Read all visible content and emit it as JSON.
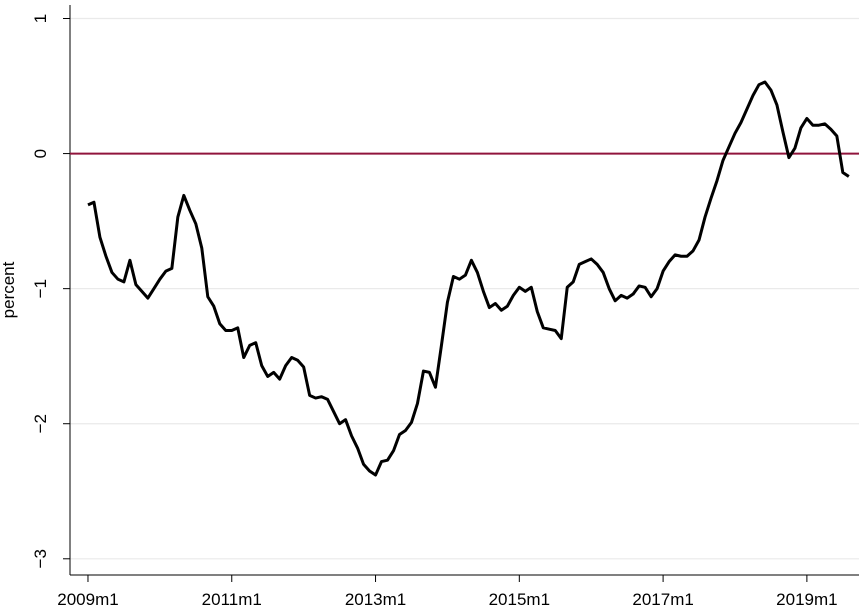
{
  "chart_data": {
    "type": "line",
    "y_label": "percent",
    "x": [
      588,
      589,
      590,
      591,
      592,
      593,
      594,
      595,
      596,
      597,
      598,
      599,
      600,
      601,
      602,
      603,
      604,
      605,
      606,
      607,
      608,
      609,
      610,
      611,
      612,
      613,
      614,
      615,
      616,
      617,
      618,
      619,
      620,
      621,
      622,
      623,
      624,
      625,
      626,
      627,
      628,
      629,
      630,
      631,
      632,
      633,
      634,
      635,
      636,
      637,
      638,
      639,
      640,
      641,
      642,
      643,
      644,
      645,
      646,
      647,
      648,
      649,
      650,
      651,
      652,
      653,
      654,
      655,
      656,
      657,
      658,
      659,
      660,
      661,
      662,
      663,
      664,
      665,
      666,
      667,
      668,
      669,
      670,
      671,
      672,
      673,
      674,
      675,
      676,
      677,
      678,
      679,
      680,
      681,
      682,
      683,
      684,
      685,
      686,
      687,
      688,
      689,
      690,
      691,
      692,
      693,
      694,
      695,
      696,
      697,
      698,
      699,
      700,
      701,
      702,
      703,
      704,
      705,
      706,
      707,
      708,
      709,
      710,
      711,
      712,
      713,
      714,
      715
    ],
    "values": [
      -0.38,
      -0.36,
      -0.62,
      -0.76,
      -0.88,
      -0.93,
      -0.95,
      -0.79,
      -0.97,
      -1.02,
      -1.07,
      -1.0,
      -0.93,
      -0.87,
      -0.85,
      -0.47,
      -0.31,
      -0.42,
      -0.52,
      -0.7,
      -1.06,
      -1.13,
      -1.26,
      -1.31,
      -1.31,
      -1.29,
      -1.51,
      -1.42,
      -1.4,
      -1.57,
      -1.65,
      -1.62,
      -1.67,
      -1.57,
      -1.51,
      -1.53,
      -1.58,
      -1.79,
      -1.81,
      -1.8,
      -1.82,
      -1.91,
      -2.0,
      -1.97,
      -2.09,
      -2.18,
      -2.3,
      -2.35,
      -2.38,
      -2.28,
      -2.27,
      -2.2,
      -2.08,
      -2.05,
      -1.99,
      -1.85,
      -1.61,
      -1.62,
      -1.73,
      -1.42,
      -1.1,
      -0.91,
      -0.93,
      -0.9,
      -0.79,
      -0.88,
      -1.02,
      -1.14,
      -1.11,
      -1.16,
      -1.13,
      -1.05,
      -0.99,
      -1.02,
      -0.99,
      -1.17,
      -1.29,
      -1.3,
      -1.31,
      -1.37,
      -0.99,
      -0.95,
      -0.82,
      -0.8,
      -0.78,
      -0.82,
      -0.88,
      -1.0,
      -1.09,
      -1.05,
      -1.07,
      -1.04,
      -0.98,
      -0.99,
      -1.06,
      -1.0,
      -0.87,
      -0.8,
      -0.75,
      -0.76,
      -0.76,
      -0.72,
      -0.64,
      -0.47,
      -0.33,
      -0.2,
      -0.05,
      0.05,
      0.15,
      0.23,
      0.33,
      0.43,
      0.51,
      0.53,
      0.47,
      0.36,
      0.16,
      -0.03,
      0.04,
      0.19,
      0.26,
      0.21,
      0.21,
      0.22,
      0.18,
      0.13,
      -0.14,
      -0.17
    ],
    "color": "#000000",
    "xlim": [
      585,
      716.7
    ],
    "xticks": [
      {
        "value": 588,
        "label": "2009m1"
      },
      {
        "value": 612,
        "label": "2011m1"
      },
      {
        "value": 636,
        "label": "2013m1"
      },
      {
        "value": 660,
        "label": "2015m1"
      },
      {
        "value": 684,
        "label": "2017m1"
      },
      {
        "value": 708,
        "label": "2019m1"
      }
    ],
    "ylim": [
      -3.12,
      1.1
    ],
    "yticks": [
      {
        "value": -3,
        "label": "−3"
      },
      {
        "value": -2,
        "label": "−2"
      },
      {
        "value": -1,
        "label": "−1"
      },
      0,
      1
    ],
    "grid": true,
    "reference_line": {
      "value": 0,
      "color": "#90143c"
    }
  }
}
